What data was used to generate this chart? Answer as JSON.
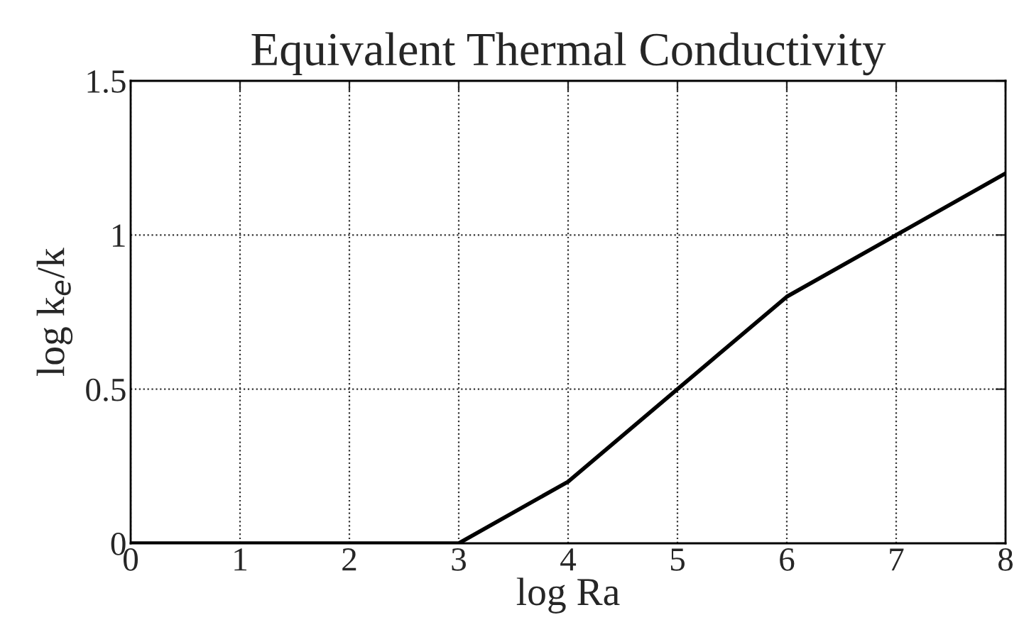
{
  "chart_data": {
    "type": "line",
    "title": "Equivalent Thermal Conductivity",
    "xlabel": "log Ra",
    "ylabel": "log k$_{e}$/k",
    "x": [
      0,
      3,
      4,
      5,
      6,
      7,
      8
    ],
    "series": [
      {
        "color": "#000000",
        "values": [
          0,
          0,
          0.2,
          0.5,
          0.8,
          1.0,
          1.2
        ]
      }
    ],
    "xlim": [
      0,
      8
    ],
    "ylim": [
      0,
      1.5
    ],
    "xticks": [
      0,
      1,
      2,
      3,
      4,
      5,
      6,
      7,
      8
    ],
    "yticks": [
      0,
      0.5,
      1,
      1.5
    ],
    "grid": true,
    "line_style": "solid",
    "marker": "none"
  }
}
